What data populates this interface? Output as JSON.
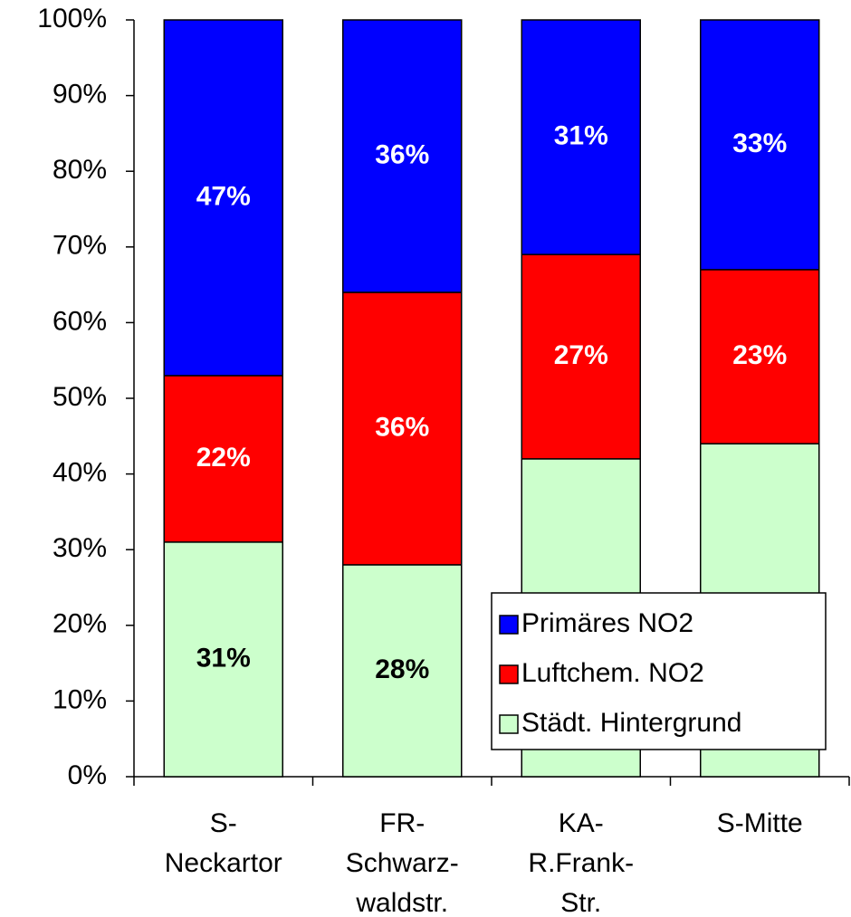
{
  "chart_data": {
    "type": "stacked_bar_100",
    "categories": [
      "S-\nNeckartor",
      "FR-\nSchwarz-\nwaldstr.",
      "KA-\nR.Frank-\nStr.",
      "S-Mitte"
    ],
    "series": [
      {
        "name": "Städt. Hintergrund",
        "color": "#ccffcc",
        "label_color": "#000000",
        "values": [
          31,
          28,
          42,
          44
        ],
        "value_labels": [
          "31%",
          "28%",
          "42%",
          "44%"
        ]
      },
      {
        "name": "Luftchem. NO2",
        "color": "#ff0000",
        "label_color": "#ffffff",
        "values": [
          22,
          36,
          27,
          23
        ],
        "value_labels": [
          "22%",
          "36%",
          "27%",
          "23%"
        ]
      },
      {
        "name": "Primäres NO2",
        "color": "#0000ff",
        "label_color": "#ffffff",
        "values": [
          47,
          36,
          31,
          33
        ],
        "value_labels": [
          "47%",
          "36%",
          "31%",
          "33%"
        ]
      }
    ],
    "ylim": [
      0,
      100
    ],
    "yticks": [
      {
        "value": 0,
        "label": "0%"
      },
      {
        "value": 10,
        "label": "10%"
      },
      {
        "value": 20,
        "label": "20%"
      },
      {
        "value": 30,
        "label": "30%"
      },
      {
        "value": 40,
        "label": "40%"
      },
      {
        "value": 50,
        "label": "50%"
      },
      {
        "value": 60,
        "label": "60%"
      },
      {
        "value": 70,
        "label": "70%"
      },
      {
        "value": 80,
        "label": "80%"
      },
      {
        "value": 90,
        "label": "90%"
      },
      {
        "value": 100,
        "label": "100%"
      }
    ],
    "legend": "lower right"
  }
}
